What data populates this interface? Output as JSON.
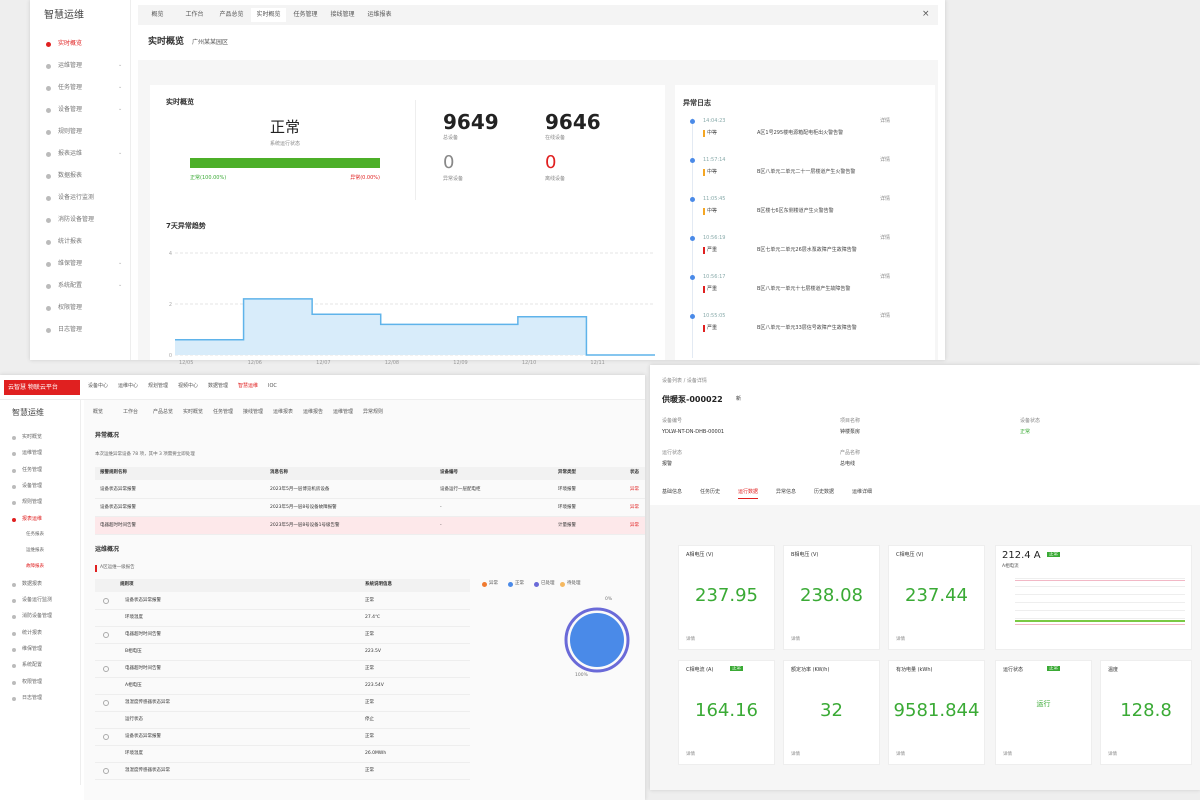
{
  "top": {
    "sidebar": {
      "title": "智慧运维",
      "items": [
        "实时概览",
        "运维管理",
        "任务管理",
        "设备管理",
        "规则管理",
        "报表运维",
        "数据报表",
        "设备运行监测",
        "消防设备管理",
        "统计报表",
        "维保管理",
        "系统配置",
        "权限管理",
        "日志管理"
      ]
    },
    "tabs": [
      "概览",
      "工作台",
      "产品总览",
      "实时概览",
      "任务管理",
      "接线管理",
      "运维报表"
    ],
    "header": {
      "title": "实时概览",
      "site": "广州某某园区"
    },
    "overview": {
      "title": "实时概览",
      "status": "正常",
      "status_label": "系统运行状态",
      "normal": "正常(100.00%)",
      "abnormal": "异常(0.00%)",
      "stats": [
        {
          "value": 9649,
          "label": "总设备"
        },
        {
          "value": 9646,
          "label": "在线设备"
        },
        {
          "value": 0,
          "label": "异常设备"
        },
        {
          "value": 0,
          "label": "离线设备"
        }
      ]
    },
    "log": {
      "title": "异常日志",
      "entries": [
        {
          "time": "14:04:23",
          "level": "中等",
          "text": "A区1号295楼电源箱配电柜出火警告警",
          "action": "详情"
        },
        {
          "time": "11:57:14",
          "level": "中等",
          "text": "B区八单元二单元二十一层楼道产生火警告警",
          "action": "详情"
        },
        {
          "time": "11:05:45",
          "level": "中等",
          "text": "B区楼七6区东侧楼道产生火警告警",
          "action": "详情"
        },
        {
          "time": "10:56:19",
          "level": "严重",
          "text": "B区七单元二单元26层水泵故障产生故障告警",
          "action": "详情"
        },
        {
          "time": "10:56:17",
          "level": "严重",
          "text": "B区八单元一单元十七层楼道产生故障告警",
          "action": "详情"
        },
        {
          "time": "10:55:05",
          "level": "严重",
          "text": "B区八单元一单元33层信号故障产生故障告警",
          "action": "详情"
        }
      ]
    }
  },
  "chart_data": {
    "type": "line",
    "title": "7天异常趋势",
    "categories": [
      "12/05",
      "12/06",
      "12/07",
      "12/08",
      "12/09",
      "12/10",
      "12/11"
    ],
    "values": [
      0.6,
      2.2,
      1.6,
      1.2,
      1.2,
      1.5,
      0
    ],
    "color": "#5fb3ea",
    "ylim": [
      0,
      4
    ],
    "yticks": [
      0,
      2,
      4
    ],
    "grid": true,
    "step": true
  },
  "bottom_left": {
    "logo": "云智慧 物联云平台",
    "nav": [
      "设备中心",
      "运维中心",
      "规划管理",
      "视频中心",
      "数据管理",
      "智慧运维",
      "IOC"
    ],
    "nav_active": 5,
    "sidebar": {
      "title": "智慧运维",
      "items": [
        "实时概览",
        "运维管理",
        "任务管理",
        "设备管理",
        "规则管理",
        "报表运维",
        "任务报表",
        "运维报表",
        "故障报表",
        "数据报表",
        "设备运行监测",
        "消防设备管理",
        "统计报表",
        "维保管理",
        "系统配置",
        "权限管理",
        "日志管理"
      ]
    },
    "tabs": [
      "概览",
      "工作台",
      "产品总览",
      "实时概览",
      "任务管理",
      "接线管理",
      "运维报表",
      "运维报告",
      "运维管理",
      "异常规则"
    ],
    "abnormal": {
      "title": "异常概况",
      "note": "本次运维异常设备 78 项，其中 3 项需要立即处理",
      "headers": [
        "报警规则名称",
        "消息名称",
        "设备编号",
        "异常类型",
        "状态"
      ],
      "rows": [
        [
          "设备状态异常报警",
          "2023年5月一层博览机房设备",
          "设备运行一层配电柜",
          "环境报警",
          "异常"
        ],
        [
          "设备状态异常报警",
          "2023年5月一层8号设备故障报警",
          "-",
          "环境报警",
          "异常"
        ],
        [
          "电器超时时间告警",
          "2023年5月一层8号设备1号级告警",
          "-",
          "计量报警",
          "异常"
        ]
      ]
    },
    "ops": {
      "title": "运维概况",
      "note": "A区运维一级报告",
      "headers": [
        "规则项",
        "系统说明信息"
      ],
      "rows": [
        [
          "设备状态异常报警",
          "正常"
        ],
        [
          "环境温度",
          "27.4℃"
        ],
        [
          "电器超时时间告警",
          "正常"
        ],
        [
          "B相电压",
          "223.5V"
        ],
        [
          "电器超时时间告警",
          "正常"
        ],
        [
          "A相电压",
          "223.54V"
        ],
        [
          "温湿度传感器状态异常",
          "正常"
        ],
        [
          "运行状态",
          "停止"
        ],
        [
          "设备状态异常报警",
          "正常"
        ],
        [
          "环境温度",
          "26.0MWh"
        ],
        [
          "温湿度传感器状态异常",
          "正常"
        ]
      ],
      "legend": [
        {
          "name": "异常",
          "color": "#f07a30"
        },
        {
          "name": "正常",
          "color": "#4a8ae8"
        },
        {
          "name": "已处理",
          "color": "#6a6ad8"
        },
        {
          "name": "待处理",
          "color": "#f5b860"
        }
      ],
      "donut_labels": [
        "0%",
        "100%"
      ]
    }
  },
  "bottom_right": {
    "breadcrumb": "设备列表 / 设备详情",
    "title": "供暖泵-000022",
    "badge": "新",
    "fields": [
      {
        "label": "设备编号",
        "value": "YDLW-NT-DN-DHB-00001"
      },
      {
        "label": "项目名称",
        "value": "钟楼泵房"
      },
      {
        "label": "设备状态",
        "value": "正常"
      },
      {
        "label": "运行状态",
        "value": "报警"
      },
      {
        "label": "产品名称",
        "value": "总电线"
      }
    ],
    "tabs": [
      "基础信息",
      "任务历史",
      "运行数据",
      "异常信息",
      "历史数据",
      "运维详细"
    ],
    "tab_active": 2,
    "cards": [
      {
        "title": "A相电压 (V)",
        "value": 237.95,
        "footer": "详情"
      },
      {
        "title": "B相电压 (V)",
        "value": 238.08,
        "footer": "详情"
      },
      {
        "title": "C相电压 (V)",
        "value": 237.44,
        "footer": "详情"
      },
      {
        "title": "C相电流 (A)",
        "tag": "正常",
        "value": 164.16,
        "footer": "详情"
      },
      {
        "title": "额定功率 (KW/h)",
        "value": 32,
        "footer": "详情"
      },
      {
        "title": "有功电量 (kWh)",
        "value": 9581.844,
        "footer": "详情"
      },
      {
        "title": "运行状态",
        "tag": "正常",
        "value": "运行",
        "footer": "详情"
      },
      {
        "title": "温度",
        "value": 128.8,
        "footer": "详情"
      }
    ],
    "current": {
      "value": "212.4 A",
      "tag": "正常",
      "label": "A相电流"
    }
  }
}
